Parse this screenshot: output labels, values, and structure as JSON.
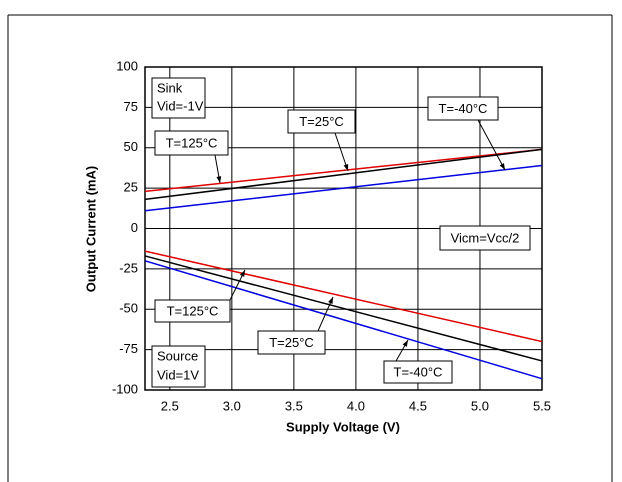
{
  "chart_data": {
    "type": "line",
    "xlabel": "Supply Voltage (V)",
    "ylabel": "Output Current (mA)",
    "x": [
      2.3,
      5.5
    ],
    "series": [
      {
        "name": "T=125°C",
        "color": "#e00000",
        "values": [
          23,
          49
        ]
      },
      {
        "name": "T=25°C",
        "color": "#000000",
        "values": [
          18,
          49
        ]
      },
      {
        "name": "T=-40°C",
        "color": "#0000e0",
        "values": [
          11,
          39
        ]
      },
      {
        "name": "T=125°C",
        "color": "#e00000",
        "values": [
          -14,
          -70
        ]
      },
      {
        "name": "T=25°C",
        "color": "#000000",
        "values": [
          -17,
          -82
        ]
      },
      {
        "name": "T=-40°C",
        "color": "#0000e0",
        "values": [
          -20,
          -93
        ]
      }
    ],
    "annotations": [
      "Sink",
      "Vid=-1V",
      "Vicm=Vcc/2",
      "Source",
      "Vid=1V"
    ],
    "xlim": [
      2.3,
      5.5
    ],
    "xticks": [
      2.5,
      {
        "value": 3,
        "label": "3.0"
      },
      3.5,
      {
        "value": 4,
        "label": "4.0"
      },
      4.5,
      {
        "value": 5,
        "label": "5.0"
      },
      5.5
    ],
    "ylim": [
      -100,
      100
    ],
    "yticks": [
      -100,
      -75,
      -50,
      -25,
      0,
      25,
      50,
      75,
      100
    ],
    "grid": true
  }
}
